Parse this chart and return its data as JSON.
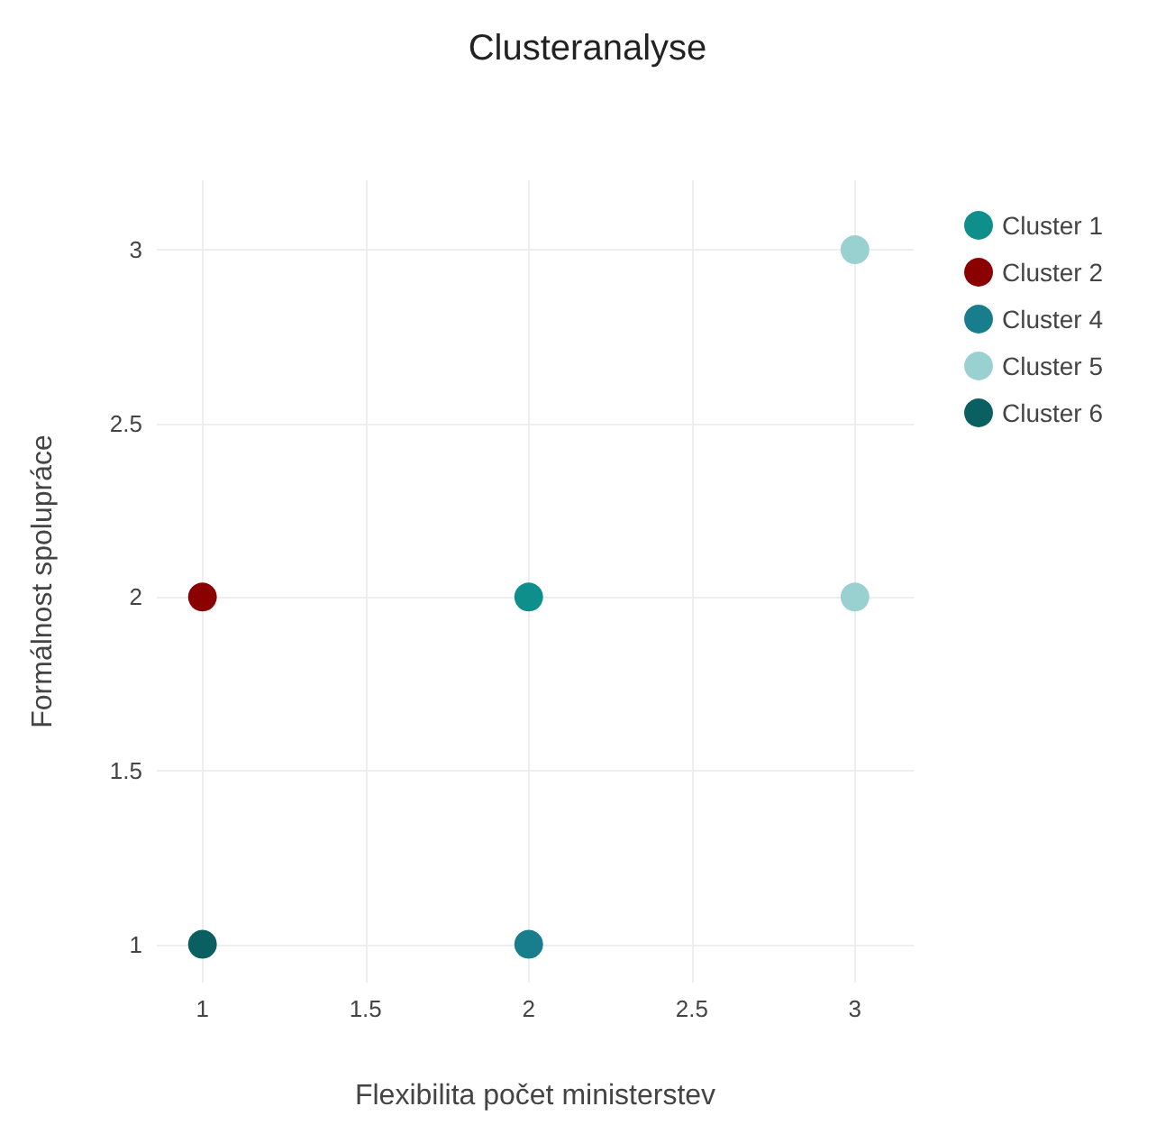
{
  "chart_data": {
    "type": "scatter",
    "title": "Clusteranalyse",
    "xlabel": "Flexibilita počet ministerstev",
    "ylabel": "Formálnost spolupráce",
    "series": [
      {
        "name": "Cluster 1",
        "color": "#0f8f8c",
        "x": [
          2
        ],
        "values": [
          2
        ]
      },
      {
        "name": "Cluster 2",
        "color": "#8b0000",
        "x": [
          1
        ],
        "values": [
          2
        ]
      },
      {
        "name": "Cluster 4",
        "color": "#187d8c",
        "x": [
          2
        ],
        "values": [
          1
        ]
      },
      {
        "name": "Cluster 5",
        "color": "#99d1d0",
        "x": [
          3,
          3
        ],
        "values": [
          3,
          2
        ]
      },
      {
        "name": "Cluster 6",
        "color": "#0a6060",
        "x": [
          1
        ],
        "values": [
          1
        ]
      }
    ],
    "xlim": [
      0.86,
      3.18
    ],
    "xticks": [
      1,
      1.5,
      2,
      2.5,
      3
    ],
    "ylim": [
      0.89,
      3.2
    ],
    "yticks": [
      1,
      1.5,
      2,
      2.5,
      3
    ],
    "grid": true,
    "legend": "top right",
    "marker": "circle"
  }
}
